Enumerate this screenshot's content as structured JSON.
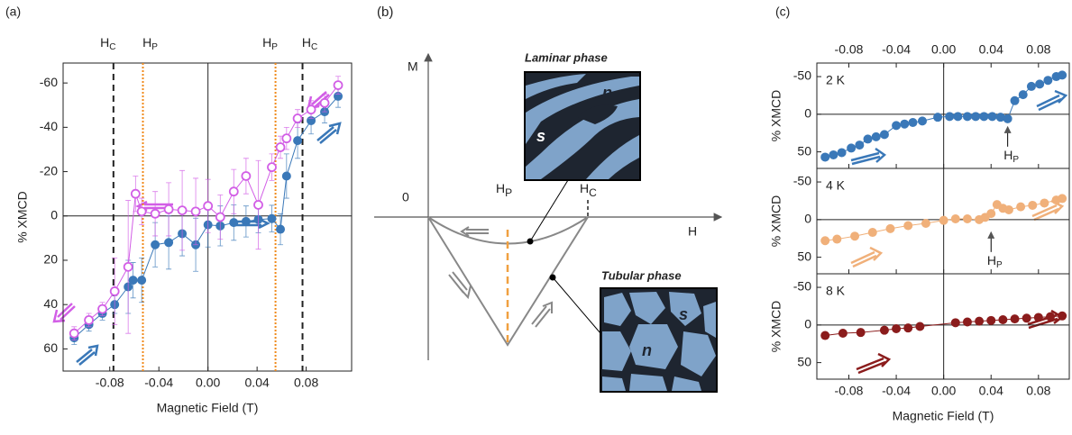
{
  "chart_data": [
    {
      "type": "scatter",
      "panel_label": "(a)",
      "xlabel": "Magnetic Field (T)",
      "ylabel": "% XMCD",
      "xlim": [
        -0.118,
        0.117
      ],
      "xticks": [
        -0.08,
        -0.04,
        {
          "value": 0,
          "label": "0.00"
        },
        0.04,
        0.08
      ],
      "ylim": [
        -69,
        70
      ],
      "yticks": [
        -60,
        -40,
        -20,
        0,
        20,
        40,
        60
      ],
      "invert_y": true,
      "zero_lines": true,
      "vlines": [
        {
          "x": -0.077,
          "label": "H",
          "sub": "C",
          "color": "#222222",
          "style": "dashed"
        },
        {
          "x": -0.053,
          "label": "H",
          "sub": "P",
          "color": "#f08a1c",
          "style": "dotted"
        },
        {
          "x": 0.055,
          "label": "H",
          "sub": "P",
          "color": "#f08a1c",
          "style": "dotted"
        },
        {
          "x": 0.077,
          "label": "H",
          "sub": "C",
          "color": "#222222",
          "style": "dashed"
        }
      ],
      "series": [
        {
          "color": "#3a78b8",
          "marker": "filled",
          "x": [
            -0.109,
            -0.097,
            -0.086,
            -0.076,
            -0.065,
            -0.061,
            -0.054,
            -0.043,
            -0.032,
            -0.021,
            -0.01,
            0.0,
            0.01,
            0.021,
            0.031,
            0.041,
            0.052,
            0.059,
            0.064,
            0.073,
            0.084,
            0.095,
            0.106
          ],
          "values": [
            55,
            49,
            44,
            40,
            32,
            29,
            29,
            13,
            12,
            8,
            13,
            4,
            4.5,
            3,
            2.5,
            1.6,
            1.2,
            6,
            -18,
            -34,
            -43,
            -47,
            -54
          ],
          "errors": [
            3,
            3,
            3,
            4,
            12,
            8,
            10,
            10,
            12,
            10,
            12,
            10,
            9,
            8,
            7,
            6,
            6,
            7,
            10,
            8,
            6,
            5,
            5
          ]
        },
        {
          "color": "#d25ee6",
          "marker": "open",
          "x": [
            -0.109,
            -0.097,
            -0.086,
            -0.076,
            -0.065,
            -0.059,
            -0.054,
            -0.043,
            -0.032,
            -0.021,
            -0.01,
            0.0,
            0.01,
            0.021,
            0.031,
            0.041,
            0.052,
            0.059,
            0.064,
            0.073,
            0.084,
            0.095,
            0.106
          ],
          "values": [
            53,
            47,
            42,
            34,
            23,
            -10,
            -2,
            -1,
            -3,
            -2.5,
            -2,
            -4.5,
            0.5,
            -11,
            -18,
            -5,
            -22,
            -31,
            -35,
            -44,
            -48,
            -51,
            -59
          ],
          "errors": [
            3,
            3,
            3,
            15,
            30,
            8,
            6,
            10,
            12,
            18,
            15,
            12,
            10,
            10,
            8,
            20,
            6,
            5,
            5,
            4,
            4,
            4,
            4
          ]
        }
      ]
    },
    {
      "type": "scatter",
      "panel_label": "(c)",
      "label": "2 K",
      "ylabel": "% XMCD",
      "top_tick_labels": true,
      "bottom_tick_labels": false,
      "xlim": [
        -0.107,
        0.106
      ],
      "xticks": [
        -0.08,
        -0.04,
        {
          "value": 0,
          "label": "0.00"
        },
        0.04,
        0.08
      ],
      "ylim": [
        -68,
        72
      ],
      "yticks": [
        -50,
        0,
        50
      ],
      "invert_y": true,
      "zero_lines": true,
      "annotations": [
        {
          "x": 0.054,
          "label": "H",
          "sub": "P"
        }
      ],
      "series": [
        {
          "color": "#3a78b8",
          "marker": "filled",
          "x": [
            -0.1,
            -0.093,
            -0.086,
            -0.078,
            -0.071,
            -0.064,
            -0.057,
            -0.05,
            -0.04,
            -0.033,
            -0.026,
            -0.018,
            -0.005,
            0.005,
            0.012,
            0.02,
            0.027,
            0.034,
            0.041,
            0.048,
            0.054,
            0.06,
            0.067,
            0.074,
            0.081,
            0.088,
            0.095,
            0.1
          ],
          "values": [
            57,
            54,
            51,
            45,
            41,
            33,
            30,
            27,
            15,
            13,
            11,
            9,
            4,
            3,
            3,
            3,
            3,
            3,
            3,
            4,
            6,
            -18,
            -26,
            -37,
            -40,
            -45,
            -50,
            -52
          ]
        }
      ]
    },
    {
      "type": "scatter",
      "label": "4 K",
      "ylabel": "% XMCD",
      "bottom_tick_labels": false,
      "xlim": [
        -0.107,
        0.106
      ],
      "xticks": [
        -0.08,
        -0.04,
        {
          "value": 0,
          "label": "0.00"
        },
        0.04,
        0.08
      ],
      "ylim": [
        -68,
        72
      ],
      "yticks": [
        -50,
        0,
        50
      ],
      "invert_y": true,
      "zero_lines": true,
      "annotations": [
        {
          "x": 0.04,
          "label": "H",
          "sub": "P"
        }
      ],
      "series": [
        {
          "color": "#f0b07a",
          "marker": "filled",
          "x": [
            -0.1,
            -0.09,
            -0.075,
            -0.06,
            -0.045,
            -0.03,
            -0.015,
            0.0,
            0.01,
            0.02,
            0.03,
            0.035,
            0.04,
            0.045,
            0.05,
            0.055,
            0.065,
            0.075,
            0.085,
            0.095,
            0.1
          ],
          "values": [
            28,
            26,
            22,
            17,
            12,
            8,
            5,
            1,
            -1,
            -1,
            0,
            -3,
            -8,
            -20,
            -15,
            -13,
            -17,
            -19,
            -22,
            -26,
            -28
          ]
        }
      ]
    },
    {
      "type": "scatter",
      "label": "8 K",
      "ylabel": "% XMCD",
      "xlabel": "Magnetic Field (T)",
      "bottom_tick_labels": true,
      "xlim": [
        -0.107,
        0.106
      ],
      "xticks": [
        -0.08,
        -0.04,
        {
          "value": 0,
          "label": "0.00"
        },
        0.04,
        0.08
      ],
      "ylim": [
        -68,
        72
      ],
      "yticks": [
        -50,
        0,
        50
      ],
      "invert_y": true,
      "zero_lines": true,
      "series": [
        {
          "color": "#8b1c1c",
          "marker": "filled",
          "x": [
            -0.1,
            -0.085,
            -0.07,
            -0.05,
            -0.04,
            -0.03,
            -0.02,
            0.01,
            0.02,
            0.03,
            0.04,
            0.05,
            0.06,
            0.07,
            0.08,
            0.09,
            0.1
          ],
          "values": [
            14,
            11,
            10,
            7,
            5,
            4,
            2,
            -3,
            -4,
            -5,
            -6,
            -7,
            -8,
            -9,
            -10,
            -11,
            -12
          ]
        }
      ]
    }
  ],
  "diagram": {
    "panel_label": "(b)",
    "axis_m": "M",
    "axis_h": "H",
    "origin": "0",
    "hp": {
      "text": "H",
      "sub": "P"
    },
    "hc": {
      "text": "H",
      "sub": "C"
    },
    "laminar": {
      "title": "Laminar phase",
      "n": "n",
      "s": "s"
    },
    "tubular": {
      "title": "Tubular phase",
      "n": "n",
      "s": "s"
    }
  }
}
